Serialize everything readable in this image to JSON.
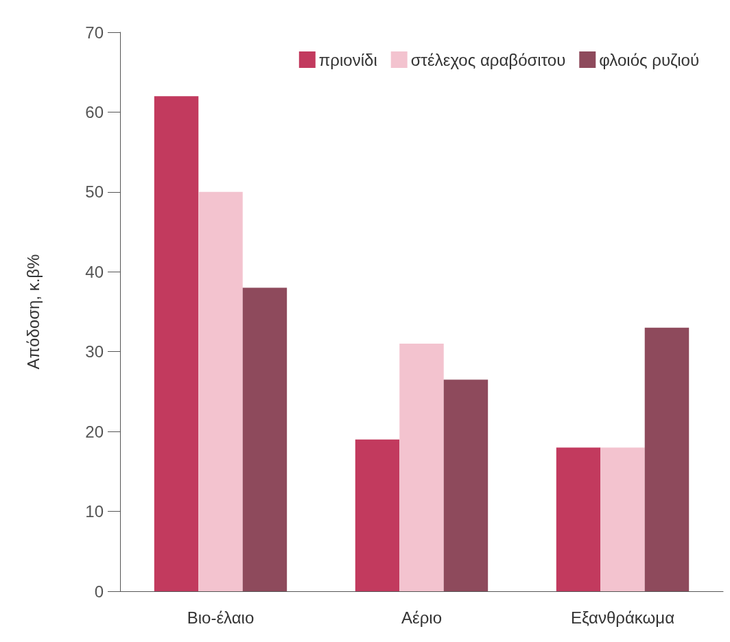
{
  "chart_data": {
    "type": "bar",
    "ylabel": "Απόδοση, κ.β%",
    "categories": [
      "Βιο-έλαιο",
      "Αέριο",
      "Εξανθράκωμα"
    ],
    "series": [
      {
        "name": "πριονίδι",
        "color": "#c23a5e",
        "values": [
          62,
          19,
          18
        ]
      },
      {
        "name": "στέλεχος αραβόσιτου",
        "color": "#f3c3cf",
        "values": [
          50,
          31,
          18
        ]
      },
      {
        "name": "φλοιός ρυζιού",
        "color": "#8e4a5c",
        "values": [
          38,
          26.5,
          33
        ]
      }
    ],
    "ylim": [
      0,
      70
    ],
    "yticks": [
      0,
      10,
      20,
      30,
      40,
      50,
      60,
      70
    ],
    "grid": false,
    "legend": "top right"
  }
}
